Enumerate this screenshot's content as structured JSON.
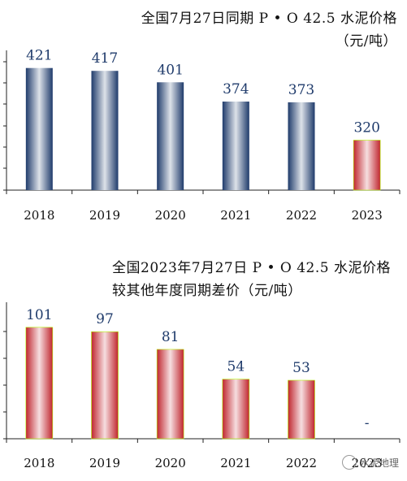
{
  "chart_data": [
    {
      "type": "bar",
      "title_lines": [
        "全国7月27日同期 P • O 42.5 水泥价格",
        "（元/吨）"
      ],
      "categories": [
        "2018",
        "2019",
        "2020",
        "2021",
        "2022",
        "2023"
      ],
      "values": [
        421,
        417,
        401,
        374,
        373,
        320
      ],
      "labels": [
        "421",
        "417",
        "401",
        "374",
        "373",
        "320"
      ],
      "colors": [
        "#1f3b6b",
        "#1f3b6b",
        "#1f3b6b",
        "#1f3b6b",
        "#1f3b6b",
        "#c0262e"
      ],
      "ylim": [
        250,
        440
      ],
      "label_color": "#1f3b6b"
    },
    {
      "type": "bar",
      "title_lines": [
        "全国2023年7月27日 P • O 42.5 水泥价格",
        "较其他年度同期差价（元/吨）"
      ],
      "categories": [
        "2018",
        "2019",
        "2020",
        "2021",
        "2022",
        "2023"
      ],
      "values": [
        101,
        97,
        81,
        54,
        53,
        0
      ],
      "labels": [
        "101",
        "97",
        "81",
        "54",
        "53",
        "-"
      ],
      "colors": [
        "#c0262e",
        "#c0262e",
        "#c0262e",
        "#c0262e",
        "#c0262e",
        "#c0262e"
      ],
      "ylim": [
        0,
        120
      ],
      "label_color": "#1f3b6b"
    }
  ],
  "watermark": "水泥地理"
}
